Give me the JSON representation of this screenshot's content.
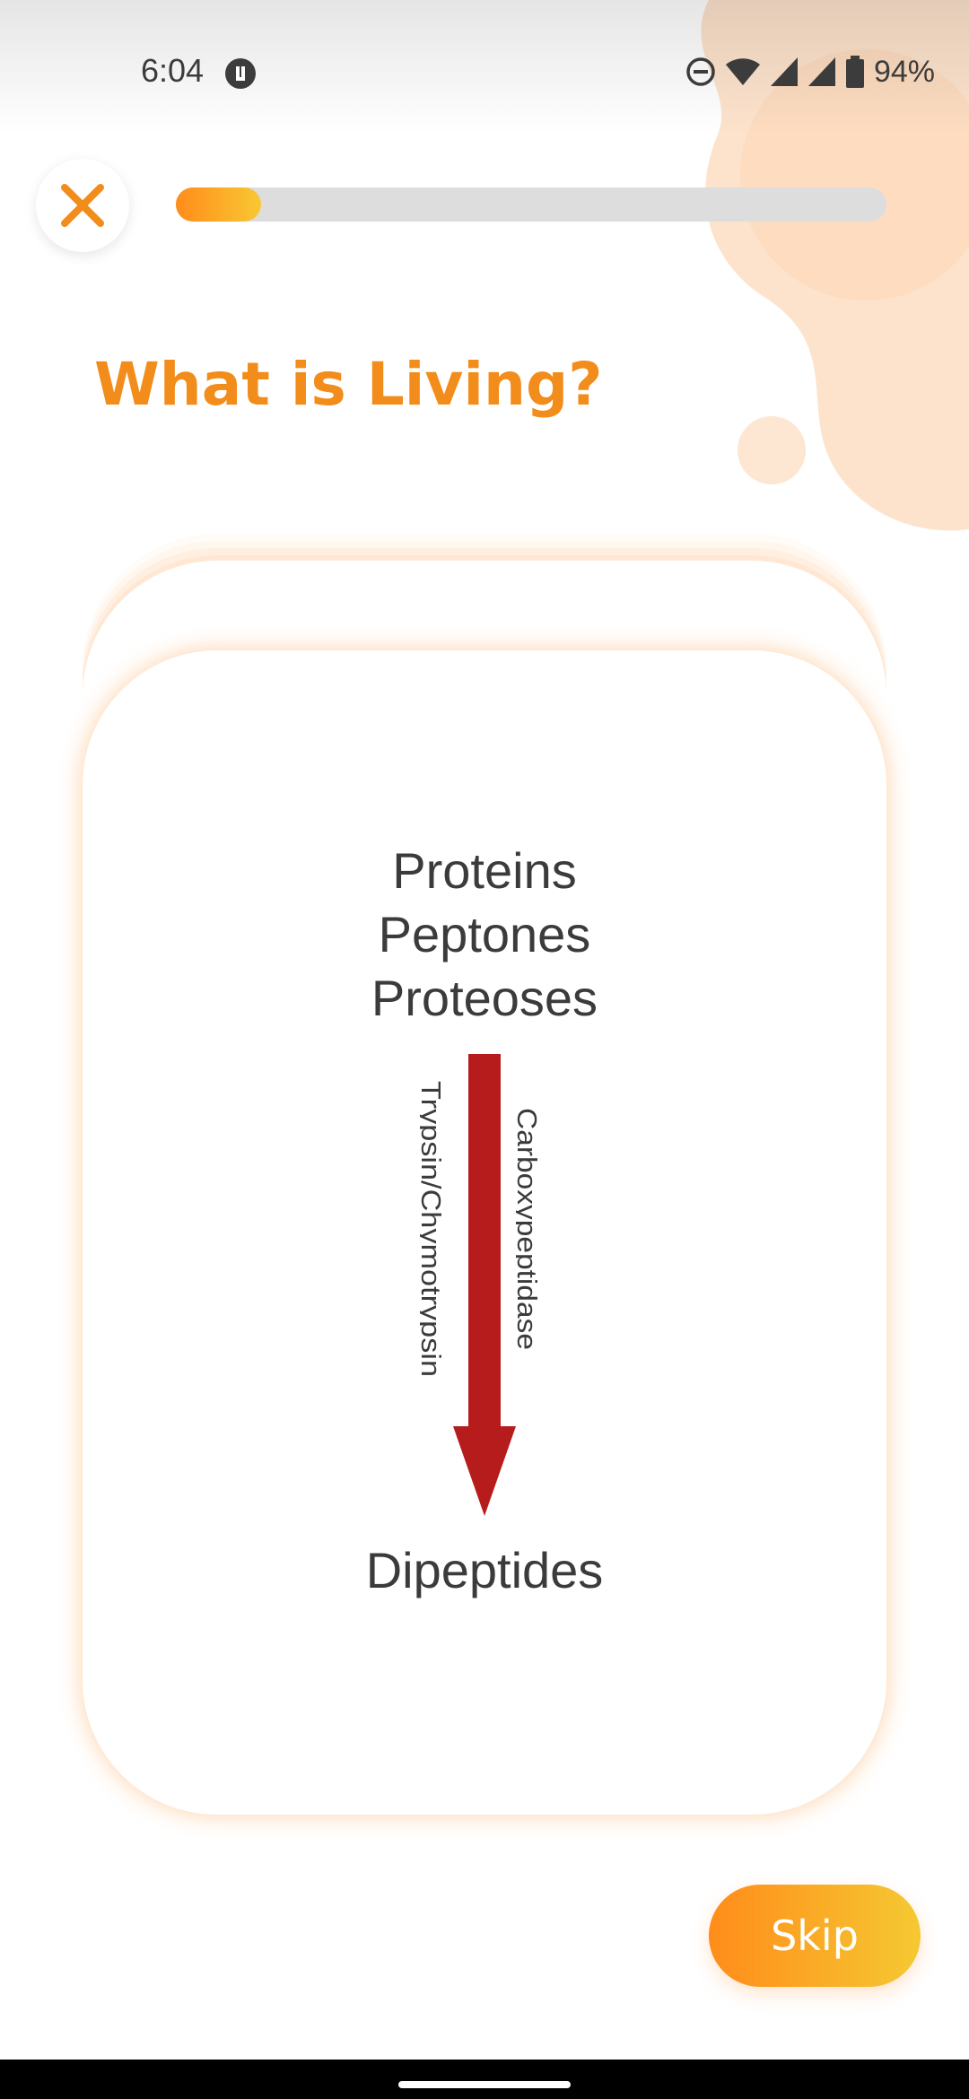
{
  "status_bar": {
    "time": "6:04",
    "battery_percent": "94%",
    "icons": [
      "vpn-icon",
      "dnd-icon",
      "wifi-icon",
      "signal-icon",
      "signal-icon",
      "battery-icon"
    ]
  },
  "header": {
    "close_icon": "close-icon",
    "progress": 0.12,
    "colors": {
      "accent_start": "#ff8c1a",
      "accent_end": "#f9c833",
      "track": "#dddddd"
    }
  },
  "title": "What is Living?",
  "card": {
    "lines_top": [
      "Proteins",
      "Peptones",
      "Proteoses"
    ],
    "enzyme_left": "Trypsin/Chymotrypsin",
    "enzyme_right": "Carboxypeptidase",
    "product": "Dipeptides",
    "arrow_color": "#b71c1c"
  },
  "skip_label": "Skip"
}
